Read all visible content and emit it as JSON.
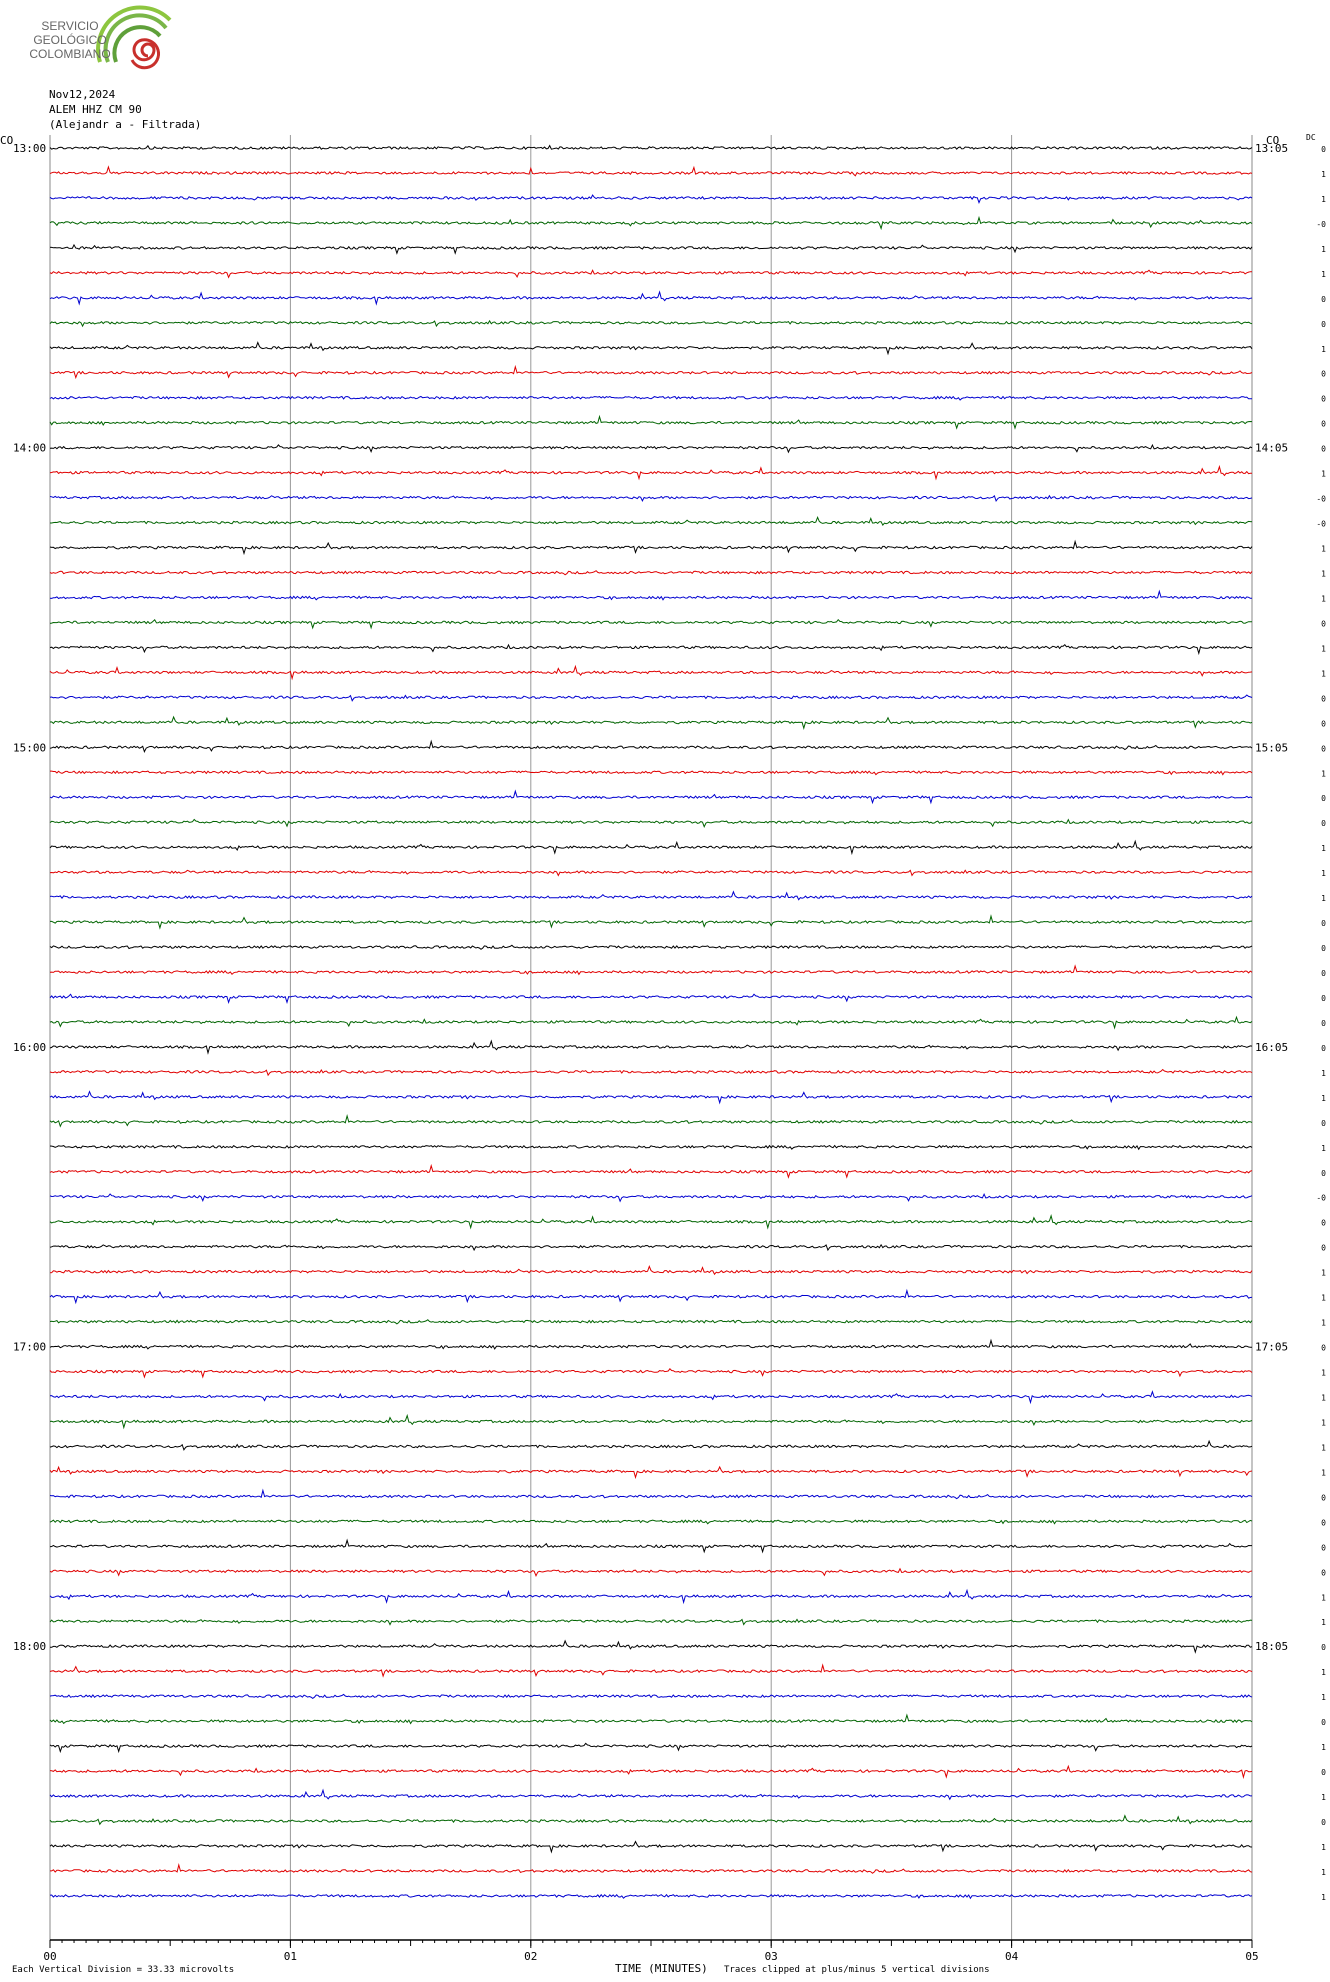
{
  "logo": {
    "lines": [
      "SERVICIO",
      "GEOLÓGICO",
      "COLOMBIANO"
    ]
  },
  "header": {
    "date": "Nov12,2024",
    "station": "ALEM HHZ CM 90",
    "name": "(Alejandr  a - Filtrada)"
  },
  "corner_left": "CO",
  "corner_right": "CO",
  "dc_label": "DC",
  "trace_colors": [
    "#000000",
    "#e00000",
    "#0000d0",
    "#006400"
  ],
  "hour_labels": [
    {
      "left": "13:00",
      "right": "13:05"
    },
    {
      "left": "14:00",
      "right": "14:05"
    },
    {
      "left": "15:00",
      "right": "15:05"
    },
    {
      "left": "16:00",
      "right": "16:05"
    },
    {
      "left": "17:00",
      "right": "17:05"
    },
    {
      "left": "18:00",
      "right": "18:05"
    }
  ],
  "dc_values": [
    "0",
    "1",
    "1",
    "-0",
    "1",
    "1",
    "0",
    "0",
    "1",
    "0",
    "0",
    "0",
    "0",
    "1",
    "-0",
    "-0",
    "1",
    "1",
    "1",
    "0",
    "1",
    "1",
    "0",
    "0",
    "0",
    "1",
    "0",
    "0",
    "1",
    "1",
    "1",
    "0",
    "0",
    "0",
    "0",
    "0",
    "0",
    "1",
    "1",
    "0",
    "1",
    "0",
    "-0",
    "0",
    "0",
    "1",
    "1",
    "1",
    "0",
    "1",
    "1",
    "1",
    "1",
    "1",
    "0",
    "0",
    "0",
    "0",
    "1",
    "1",
    "0",
    "1",
    "1",
    "0",
    "1",
    "0",
    "1",
    "0",
    "1",
    "1",
    "1"
  ],
  "x_axis": {
    "title": "TIME (MINUTES)",
    "xlim": [
      0,
      5
    ],
    "xticks": [
      {
        "value": 0,
        "label": "00"
      },
      {
        "value": 1,
        "label": "01"
      },
      {
        "value": 2,
        "label": "02"
      },
      {
        "value": 3,
        "label": "03"
      },
      {
        "value": 4,
        "label": "04"
      },
      {
        "value": 5,
        "label": "05"
      }
    ]
  },
  "footer": {
    "scale": "Each Vertical Division =   33.33 microvolts",
    "clip": "Traces clipped at plus/minus 5 vertical divisions"
  }
}
